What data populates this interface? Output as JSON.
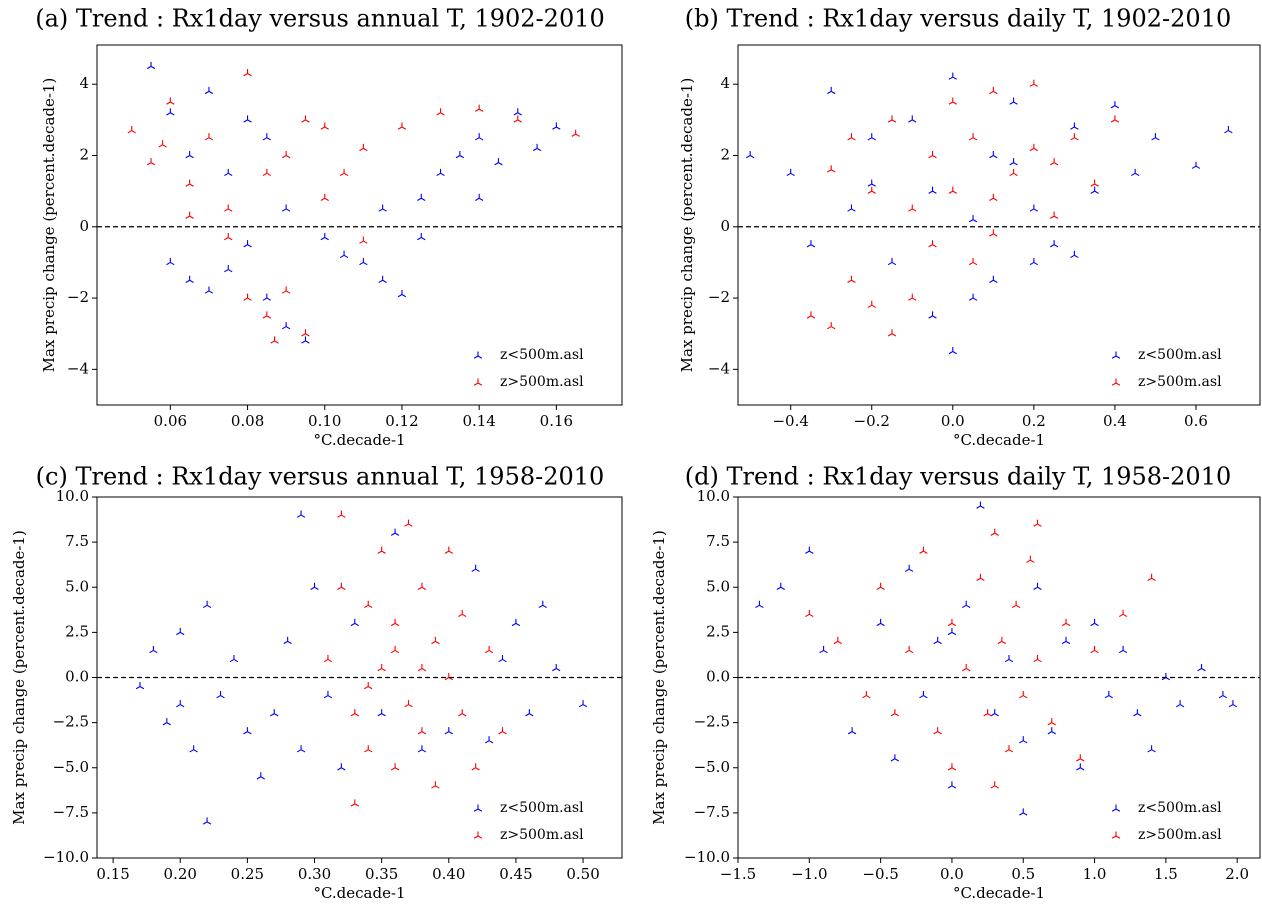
{
  "chart_data": [
    {
      "type": "scatter",
      "title": "(a) Trend : Rx1day versus annual T, 1902-2010",
      "xlabel": "°C.decade-1",
      "ylabel": "Max precip change (percent.decade-1)",
      "legend": "lower right",
      "hline": 0,
      "xlim": [
        0.041,
        0.177
      ],
      "ylim": [
        -5,
        5.1
      ],
      "xticks": [
        0.06,
        0.08,
        {
          "value": 0.1,
          "label": "0.10"
        },
        0.12,
        0.14,
        0.16
      ],
      "yticks": [
        {
          "value": -4,
          "label": "−4"
        },
        {
          "value": -2,
          "label": "−2"
        },
        0,
        2,
        4
      ],
      "series": [
        {
          "name": "z<500m.asl",
          "color": "#0000ff",
          "x": [
            0.055,
            0.06,
            0.065,
            0.07,
            0.075,
            0.08,
            0.085,
            0.09,
            0.06,
            0.065,
            0.07,
            0.075,
            0.08,
            0.085,
            0.09,
            0.095,
            0.1,
            0.105,
            0.11,
            0.115,
            0.12,
            0.115,
            0.125,
            0.13,
            0.135,
            0.14,
            0.145,
            0.15,
            0.155,
            0.16,
            0.14,
            0.125
          ],
          "y": [
            4.5,
            3.2,
            2,
            3.8,
            1.5,
            3,
            2.5,
            0.5,
            -1,
            -1.5,
            -1.8,
            -1.2,
            -0.5,
            -2,
            -2.8,
            -3.2,
            -0.3,
            -0.8,
            -1,
            -1.5,
            -1.9,
            0.5,
            0.8,
            1.5,
            2,
            2.5,
            1.8,
            3.2,
            2.2,
            2.8,
            0.8,
            -0.3
          ]
        },
        {
          "name": "z>500m.asl",
          "color": "#ff0000",
          "x": [
            0.05,
            0.055,
            0.06,
            0.065,
            0.07,
            0.075,
            0.08,
            0.085,
            0.09,
            0.095,
            0.1,
            0.105,
            0.11,
            0.12,
            0.13,
            0.14,
            0.15,
            0.165,
            0.08,
            0.085,
            0.09,
            0.095,
            0.087,
            0.075,
            0.065,
            0.11,
            0.1,
            0.058
          ],
          "y": [
            2.7,
            1.8,
            3.5,
            1.2,
            2.5,
            0.5,
            4.3,
            1.5,
            2,
            3,
            2.8,
            1.5,
            2.2,
            2.8,
            3.2,
            3.3,
            3,
            2.6,
            -2,
            -2.5,
            -1.8,
            -3,
            -3.2,
            -0.3,
            0.3,
            -0.4,
            0.8,
            2.3
          ]
        }
      ]
    },
    {
      "type": "scatter",
      "title": "(b) Trend : Rx1day versus daily T, 1902-2010",
      "xlabel": "°C.decade-1",
      "ylabel": "Max precip change (percent.decade-1)",
      "legend": "lower right",
      "hline": 0,
      "xlim": [
        -0.53,
        0.758
      ],
      "ylim": [
        -5,
        5.1
      ],
      "xticks": [
        {
          "value": -0.4,
          "label": "−0.4"
        },
        {
          "value": -0.2,
          "label": "−0.2"
        },
        {
          "value": 0,
          "label": "0.0"
        },
        0.2,
        0.4,
        0.6
      ],
      "yticks": [
        {
          "value": -4,
          "label": "−4"
        },
        {
          "value": -2,
          "label": "−2"
        },
        0,
        2,
        4
      ],
      "series": [
        {
          "name": "z<500m.asl",
          "color": "#0000ff",
          "x": [
            -0.5,
            -0.4,
            -0.3,
            -0.25,
            -0.2,
            -0.15,
            -0.1,
            -0.05,
            0,
            0.05,
            0.1,
            0.1,
            0.15,
            0.2,
            0.25,
            0.3,
            0.35,
            0.4,
            0.45,
            0.5,
            0.6,
            0.68,
            0,
            -0.05,
            0.2,
            -0.35,
            0.3,
            0.05,
            -0.2,
            0.15
          ],
          "y": [
            2,
            1.5,
            3.8,
            0.5,
            2.5,
            -1,
            3,
            1,
            4.2,
            -2,
            2,
            -1.5,
            3.5,
            0.5,
            -0.5,
            2.8,
            1,
            3.4,
            1.5,
            2.5,
            1.7,
            2.7,
            -3.5,
            -2.5,
            -1,
            -0.5,
            -0.8,
            0.2,
            1.2,
            1.8
          ]
        },
        {
          "name": "z>500m.asl",
          "color": "#ff0000",
          "x": [
            -0.35,
            -0.3,
            -0.25,
            -0.2,
            -0.15,
            -0.1,
            -0.25,
            -0.2,
            -0.15,
            -0.1,
            -0.05,
            0,
            0,
            0.05,
            0.1,
            0.1,
            0.15,
            0.2,
            0.2,
            0.25,
            0.3,
            0.35,
            0.4,
            0.05,
            -0.05,
            0.1,
            -0.3,
            0.25
          ],
          "y": [
            -2.5,
            -2.8,
            -1.5,
            -2.2,
            -3,
            -2,
            2.5,
            1,
            3,
            0.5,
            2,
            3.5,
            1,
            2.5,
            3.8,
            0.8,
            1.5,
            2.2,
            4,
            1.8,
            2.5,
            1.2,
            3,
            -1,
            -0.5,
            -0.2,
            1.6,
            0.3
          ]
        }
      ]
    },
    {
      "type": "scatter",
      "title": "(c) Trend : Rx1day versus annual T, 1958-2010",
      "xlabel": "°C.decade-1",
      "ylabel": "Max precip change (percent.decade-1)",
      "legend": "lower right",
      "hline": 0,
      "xlim": [
        0.138,
        0.529
      ],
      "ylim": [
        -10,
        10
      ],
      "xticks": [
        0.15,
        {
          "value": 0.2,
          "label": "0.20"
        },
        0.25,
        {
          "value": 0.3,
          "label": "0.30"
        },
        0.35,
        {
          "value": 0.4,
          "label": "0.40"
        },
        0.45,
        {
          "value": 0.5,
          "label": "0.50"
        }
      ],
      "yticks": [
        {
          "value": -10,
          "label": "−10.0"
        },
        {
          "value": -7.5,
          "label": "−7.5"
        },
        {
          "value": -5,
          "label": "−5.0"
        },
        {
          "value": -2.5,
          "label": "−2.5"
        },
        {
          "value": 0,
          "label": "0.0"
        },
        2.5,
        {
          "value": 5,
          "label": "5.0"
        },
        7.5,
        {
          "value": 10,
          "label": "10.0"
        }
      ],
      "series": [
        {
          "name": "z<500m.asl",
          "color": "#0000ff",
          "x": [
            0.17,
            0.18,
            0.19,
            0.2,
            0.21,
            0.22,
            0.22,
            0.23,
            0.24,
            0.25,
            0.26,
            0.27,
            0.28,
            0.29,
            0.29,
            0.3,
            0.31,
            0.32,
            0.33,
            0.35,
            0.36,
            0.38,
            0.4,
            0.42,
            0.44,
            0.45,
            0.46,
            0.47,
            0.48,
            0.5,
            0.43,
            0.2
          ],
          "y": [
            -0.5,
            1.5,
            -2.5,
            2.5,
            -4,
            4,
            -8,
            -1,
            1,
            -3,
            -5.5,
            -2,
            2,
            9,
            -4,
            5,
            -1,
            -5,
            3,
            -2,
            8,
            -4,
            -3,
            6,
            1,
            3,
            -2,
            4,
            0.5,
            -1.5,
            -3.5,
            -1.5
          ]
        },
        {
          "name": "z>500m.asl",
          "color": "#ff0000",
          "x": [
            0.31,
            0.32,
            0.33,
            0.34,
            0.34,
            0.35,
            0.35,
            0.36,
            0.36,
            0.37,
            0.37,
            0.38,
            0.38,
            0.39,
            0.39,
            0.4,
            0.4,
            0.41,
            0.41,
            0.42,
            0.43,
            0.33,
            0.36,
            0.34,
            0.44,
            0.32,
            0.38
          ],
          "y": [
            1,
            9,
            -2,
            4,
            -4,
            0.5,
            7,
            -5,
            3,
            8.5,
            -1.5,
            5,
            -3,
            2,
            -6,
            7,
            0,
            3.5,
            -2,
            -5,
            1.5,
            -7,
            1.5,
            -0.5,
            -3,
            5,
            0.5
          ]
        }
      ]
    },
    {
      "type": "scatter",
      "title": "(d) Trend : Rx1day versus daily T, 1958-2010",
      "xlabel": "°C.decade-1",
      "ylabel": "Max precip change (percent.decade-1)",
      "legend": "lower right",
      "hline": 0,
      "xlim": [
        -1.5,
        2.16
      ],
      "ylim": [
        -10,
        10
      ],
      "xticks": [
        {
          "value": -1.5,
          "label": "−1.5"
        },
        {
          "value": -1,
          "label": "−1.0"
        },
        {
          "value": -0.5,
          "label": "−0.5"
        },
        {
          "value": 0,
          "label": "0.0"
        },
        0.5,
        {
          "value": 1,
          "label": "1.0"
        },
        1.5,
        {
          "value": 2,
          "label": "2.0"
        }
      ],
      "yticks": [
        {
          "value": -10,
          "label": "−10.0"
        },
        {
          "value": -7.5,
          "label": "−7.5"
        },
        {
          "value": -5,
          "label": "−5.0"
        },
        {
          "value": -2.5,
          "label": "−2.5"
        },
        {
          "value": 0,
          "label": "0.0"
        },
        2.5,
        {
          "value": 5,
          "label": "5.0"
        },
        7.5,
        {
          "value": 10,
          "label": "10.0"
        }
      ],
      "series": [
        {
          "name": "z<500m.asl",
          "color": "#0000ff",
          "x": [
            -1.35,
            -1.2,
            -1,
            -0.9,
            -0.7,
            -0.5,
            -0.4,
            -0.3,
            -0.2,
            -0.1,
            0,
            0.1,
            0.2,
            0.3,
            0.4,
            0.5,
            0.6,
            0.7,
            0.8,
            0.9,
            1,
            1.1,
            1.2,
            1.3,
            1.4,
            1.5,
            1.6,
            1.75,
            1.9,
            1.97,
            0.5,
            0
          ],
          "y": [
            4,
            5,
            7,
            1.5,
            -3,
            3,
            -4.5,
            6,
            -1,
            2,
            -6,
            4,
            9.5,
            -2,
            1,
            -7.5,
            5,
            -3,
            2,
            -5,
            3,
            -1,
            1.5,
            -2,
            -4,
            0,
            -1.5,
            0.5,
            -1,
            -1.5,
            -3.5,
            2.5
          ]
        },
        {
          "name": "z>500m.asl",
          "color": "#ff0000",
          "x": [
            -1,
            -0.8,
            -0.6,
            -0.5,
            -0.4,
            -0.3,
            -0.2,
            -0.1,
            0,
            0,
            0.1,
            0.2,
            0.25,
            0.3,
            0.35,
            0.4,
            0.45,
            0.5,
            0.55,
            0.6,
            0.7,
            0.8,
            0.9,
            1,
            1.2,
            1.4,
            0.6,
            0.3
          ],
          "y": [
            3.5,
            2,
            -1,
            5,
            -2,
            1.5,
            7,
            -3,
            3,
            -5,
            0.5,
            5.5,
            -2,
            8,
            2,
            -4,
            4,
            -1,
            6.5,
            1,
            -2.5,
            3,
            -4.5,
            1.5,
            3.5,
            5.5,
            8.5,
            -6
          ]
        }
      ]
    }
  ]
}
